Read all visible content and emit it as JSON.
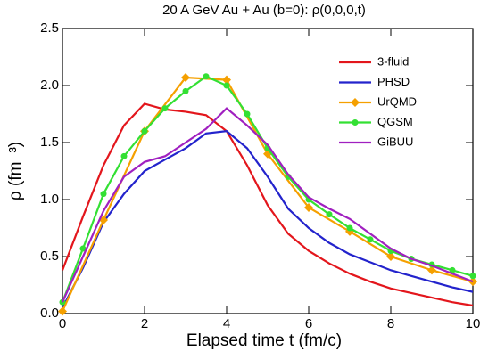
{
  "chart_data": {
    "type": "line",
    "title": "20 A GeV Au + Au (b=0):  ρ(0,0,0,t)",
    "xlabel": "Elapsed time t (fm/c)",
    "ylabel": "ρ (fm⁻³)",
    "xlim": [
      0,
      10
    ],
    "ylim": [
      0,
      2.5
    ],
    "xticks": [
      0,
      2,
      4,
      6,
      8,
      10
    ],
    "yticks": [
      {
        "value": 0,
        "label": "0.0"
      },
      0.5,
      {
        "value": 1,
        "label": "1.0"
      },
      1.5,
      {
        "value": 2,
        "label": "2.0"
      },
      2.5
    ],
    "legend": "upper right",
    "series": [
      {
        "name": "3-fluid",
        "color": "#e3161c",
        "marker": "none",
        "x": [
          0,
          0.5,
          1,
          1.5,
          2,
          2.5,
          3,
          3.5,
          4,
          4.5,
          5,
          5.5,
          6,
          6.5,
          7,
          7.5,
          8,
          8.5,
          9,
          9.5,
          10
        ],
        "values": [
          0.38,
          0.85,
          1.3,
          1.65,
          1.84,
          1.79,
          1.77,
          1.74,
          1.6,
          1.3,
          0.95,
          0.7,
          0.55,
          0.44,
          0.35,
          0.28,
          0.22,
          0.18,
          0.14,
          0.1,
          0.07
        ]
      },
      {
        "name": "PHSD",
        "color": "#2323cc",
        "marker": "none",
        "x": [
          0,
          0.5,
          1,
          1.5,
          2,
          2.5,
          3,
          3.5,
          4,
          4.5,
          5,
          5.5,
          6,
          6.5,
          7,
          7.5,
          8,
          8.5,
          9,
          9.5,
          10
        ],
        "values": [
          0.05,
          0.4,
          0.8,
          1.05,
          1.25,
          1.35,
          1.45,
          1.58,
          1.6,
          1.45,
          1.2,
          0.92,
          0.75,
          0.62,
          0.52,
          0.45,
          0.38,
          0.33,
          0.28,
          0.23,
          0.19
        ]
      },
      {
        "name": "UrQMD",
        "color": "#f5a000",
        "marker": "diamond",
        "x": [
          0,
          1,
          2,
          3,
          4,
          5,
          6,
          7,
          8,
          9,
          10
        ],
        "values": [
          0.02,
          0.82,
          1.6,
          2.07,
          2.05,
          1.4,
          0.93,
          0.72,
          0.5,
          0.38,
          0.28
        ]
      },
      {
        "name": "QGSM",
        "color": "#33e033",
        "marker": "circle",
        "x": [
          0,
          0.5,
          1,
          1.5,
          2,
          2.5,
          3,
          3.5,
          4,
          4.5,
          5,
          5.5,
          6,
          6.5,
          7,
          7.5,
          8,
          8.5,
          9,
          9.5,
          10
        ],
        "values": [
          0.1,
          0.57,
          1.05,
          1.38,
          1.6,
          1.8,
          1.95,
          2.08,
          2.0,
          1.75,
          1.45,
          1.2,
          1.0,
          0.87,
          0.75,
          0.65,
          0.55,
          0.48,
          0.43,
          0.38,
          0.33
        ]
      },
      {
        "name": "GiBUU",
        "color": "#a020c0",
        "marker": "none",
        "x": [
          0,
          0.5,
          1,
          1.5,
          2,
          2.5,
          3,
          3.5,
          4,
          4.5,
          5,
          5.5,
          6,
          6.5,
          7,
          7.5,
          8,
          8.5,
          9,
          9.5,
          10
        ],
        "values": [
          0.1,
          0.5,
          0.9,
          1.2,
          1.33,
          1.38,
          1.5,
          1.62,
          1.8,
          1.65,
          1.48,
          1.22,
          1.02,
          0.92,
          0.83,
          0.7,
          0.57,
          0.48,
          0.42,
          0.35,
          0.28
        ]
      }
    ]
  }
}
